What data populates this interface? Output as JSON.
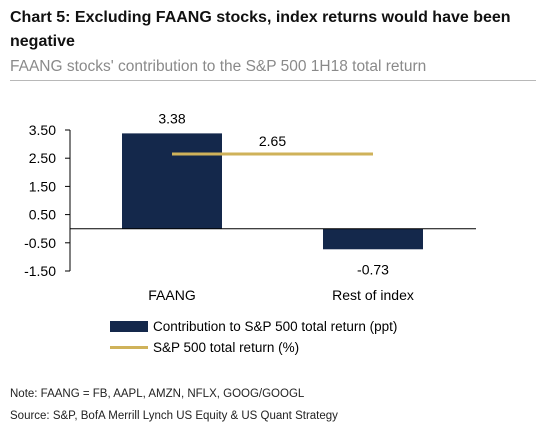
{
  "title": "Chart 5: Excluding FAANG stocks, index returns would have been negative",
  "subtitle": "FAANG stocks' contribution to the S&P 500 1H18 total return",
  "chart_data": {
    "type": "bar",
    "categories": [
      "FAANG",
      "Rest of index"
    ],
    "series": [
      {
        "name": "Contribution to S&P 500 total return (ppt)",
        "type": "bar",
        "values": [
          3.38,
          -0.73
        ],
        "color": "#14284b"
      },
      {
        "name": "S&P 500 total return (%)",
        "type": "line",
        "value": 2.65,
        "color": "#cfb25a"
      }
    ],
    "data_labels": [
      "3.38",
      "-0.73",
      "2.65"
    ],
    "y_ticks": [
      "3.50",
      "2.50",
      "1.50",
      "0.50",
      "-0.50",
      "-1.50"
    ],
    "y_tick_values": [
      3.5,
      2.5,
      1.5,
      0.5,
      -0.5,
      -1.5
    ],
    "ylim": [
      -1.5,
      3.5
    ],
    "grid": false,
    "legend_position": "bottom"
  },
  "note": "Note: FAANG = FB, AAPL, AMZN, NFLX, GOOG/GOOGL",
  "source": "Source: S&P, BofA Merrill Lynch US Equity & US Quant Strategy"
}
